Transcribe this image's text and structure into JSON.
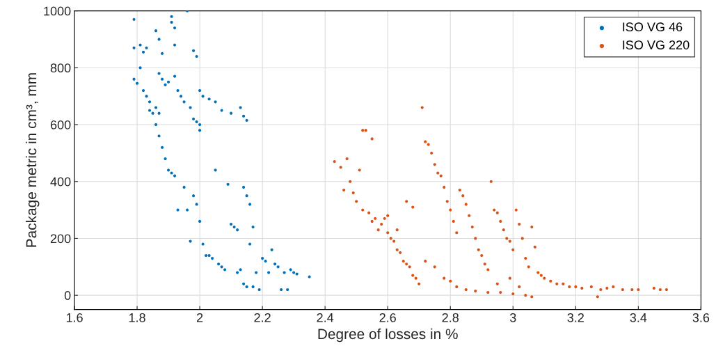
{
  "chart_data": {
    "type": "scatter",
    "xlabel": "Degree of losses in %",
    "ylabel": "Package metric in cm³, mm",
    "xlim": [
      1.6,
      3.6
    ],
    "ylim": [
      -50,
      1000
    ],
    "xticks": [
      1.6,
      1.8,
      2,
      2.2,
      2.4,
      2.6,
      2.8,
      3,
      3.2,
      3.4,
      3.6
    ],
    "yticks": [
      0,
      200,
      400,
      600,
      800,
      1000
    ],
    "grid": true,
    "legend": "top right",
    "marker": "circle",
    "series": [
      {
        "name": "ISO VG 46",
        "color": "#0072bd",
        "x": [
          1.79,
          1.79,
          1.79,
          1.8,
          1.81,
          1.81,
          1.82,
          1.83,
          1.82,
          1.83,
          1.84,
          1.84,
          1.85,
          1.86,
          1.87,
          1.86,
          1.87,
          1.88,
          1.87,
          1.88,
          1.89,
          1.9,
          1.91,
          1.91,
          1.92,
          1.92,
          1.92,
          1.93,
          1.94,
          1.95,
          1.96,
          1.97,
          1.98,
          1.99,
          2.0,
          2.0,
          1.98,
          1.99,
          2.0,
          2.01,
          2.03,
          2.05,
          2.07,
          2.1,
          2.13,
          2.14,
          2.15,
          1.86,
          1.87,
          1.88,
          1.89,
          1.9,
          1.91,
          1.92,
          1.93,
          1.95,
          1.96,
          1.97,
          1.98,
          1.99,
          2.0,
          2.01,
          2.02,
          2.03,
          2.04,
          2.05,
          2.06,
          2.07,
          2.09,
          2.1,
          2.11,
          2.12,
          2.13,
          2.14,
          2.15,
          2.16,
          2.17,
          2.17,
          2.18,
          2.19,
          2.2,
          2.21,
          2.22,
          2.23,
          2.24,
          2.25,
          2.26,
          2.27,
          2.28,
          2.29,
          2.3,
          2.31,
          2.35,
          2.14,
          2.15,
          2.16,
          2.08,
          2.12
        ],
        "values": [
          970,
          870,
          760,
          745,
          800,
          880,
          855,
          870,
          720,
          700,
          680,
          650,
          640,
          660,
          640,
          930,
          900,
          850,
          780,
          760,
          740,
          750,
          980,
          960,
          940,
          880,
          770,
          720,
          700,
          680,
          1000,
          660,
          620,
          610,
          600,
          580,
          860,
          840,
          720,
          700,
          690,
          680,
          650,
          640,
          660,
          630,
          615,
          600,
          560,
          520,
          480,
          440,
          430,
          420,
          300,
          380,
          300,
          190,
          350,
          320,
          260,
          180,
          140,
          140,
          130,
          440,
          110,
          100,
          390,
          250,
          240,
          230,
          90,
          380,
          350,
          320,
          240,
          30,
          80,
          20,
          130,
          120,
          80,
          160,
          110,
          100,
          20,
          80,
          20,
          90,
          80,
          75,
          65,
          40,
          30,
          180,
          90,
          80
        ]
      },
      {
        "name": "ISO VG 220",
        "color": "#d95319",
        "x": [
          2.43,
          2.45,
          2.46,
          2.47,
          2.48,
          2.49,
          2.5,
          2.51,
          2.52,
          2.53,
          2.55,
          2.52,
          2.54,
          2.55,
          2.56,
          2.57,
          2.58,
          2.59,
          2.6,
          2.61,
          2.62,
          2.63,
          2.64,
          2.65,
          2.66,
          2.67,
          2.68,
          2.69,
          2.7,
          2.71,
          2.72,
          2.73,
          2.74,
          2.75,
          2.76,
          2.77,
          2.78,
          2.79,
          2.8,
          2.81,
          2.82,
          2.83,
          2.84,
          2.85,
          2.86,
          2.87,
          2.88,
          2.89,
          2.9,
          2.91,
          2.92,
          2.93,
          2.94,
          2.95,
          2.96,
          2.97,
          2.98,
          2.99,
          3.0,
          3.01,
          3.02,
          3.03,
          3.04,
          3.05,
          3.06,
          3.07,
          3.08,
          3.09,
          3.1,
          3.12,
          3.14,
          3.16,
          3.18,
          3.2,
          3.22,
          3.25,
          3.27,
          3.28,
          3.3,
          3.32,
          3.35,
          3.38,
          3.4,
          3.45,
          3.47,
          3.49,
          2.75,
          2.78,
          2.8,
          2.82,
          2.85,
          2.88,
          2.92,
          2.96,
          3.0,
          3.04,
          3.06,
          2.6,
          2.63,
          2.66,
          2.68,
          2.72,
          2.95,
          2.99,
          3.02
        ],
        "values": [
          470,
          450,
          370,
          480,
          400,
          360,
          330,
          440,
          580,
          580,
          550,
          300,
          290,
          260,
          270,
          230,
          250,
          270,
          220,
          200,
          190,
          160,
          150,
          120,
          110,
          100,
          70,
          60,
          40,
          660,
          540,
          530,
          500,
          460,
          430,
          420,
          380,
          330,
          300,
          260,
          220,
          370,
          350,
          320,
          280,
          240,
          200,
          160,
          140,
          110,
          90,
          400,
          300,
          290,
          260,
          230,
          200,
          190,
          160,
          300,
          250,
          200,
          130,
          100,
          240,
          170,
          80,
          70,
          60,
          50,
          40,
          40,
          30,
          30,
          25,
          30,
          -5,
          20,
          25,
          30,
          20,
          20,
          20,
          25,
          20,
          20,
          100,
          60,
          50,
          30,
          20,
          15,
          10,
          10,
          5,
          0,
          -5,
          280,
          230,
          330,
          310,
          120,
          40,
          60,
          30
        ]
      }
    ]
  }
}
